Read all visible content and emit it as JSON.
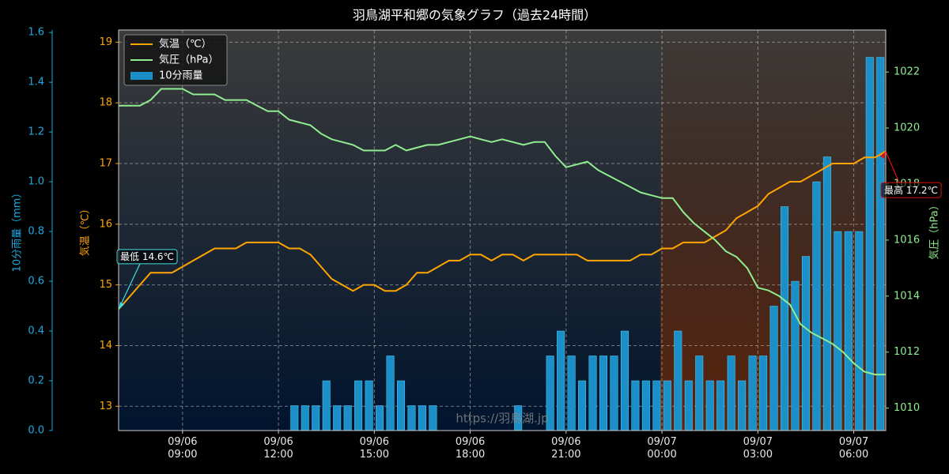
{
  "chart_data": {
    "type": "weather-combo",
    "title": "羽鳥湖平和郷の気象グラフ（過去24時間）",
    "watermark": "https://羽鳥湖.jp",
    "ylabel": "気温（℃）",
    "y2label": "気圧（hPa）",
    "y3label": "10分雨量（mm）",
    "x": [
      "09/06 07:00",
      "09/06 07:20",
      "09/06 07:40",
      "09/06 08:00",
      "09/06 08:20",
      "09/06 08:40",
      "09/06 09:00",
      "09/06 09:20",
      "09/06 09:40",
      "09/06 10:00",
      "09/06 10:20",
      "09/06 10:40",
      "09/06 11:00",
      "09/06 11:20",
      "09/06 11:40",
      "09/06 12:00",
      "09/06 12:20",
      "09/06 12:40",
      "09/06 13:00",
      "09/06 13:20",
      "09/06 13:40",
      "09/06 14:00",
      "09/06 14:20",
      "09/06 14:40",
      "09/06 15:00",
      "09/06 15:20",
      "09/06 15:40",
      "09/06 16:00",
      "09/06 16:20",
      "09/06 16:40",
      "09/06 17:00",
      "09/06 17:20",
      "09/06 17:40",
      "09/06 18:00",
      "09/06 18:20",
      "09/06 18:40",
      "09/06 19:00",
      "09/06 19:20",
      "09/06 19:40",
      "09/06 20:00",
      "09/06 20:20",
      "09/06 20:40",
      "09/06 21:00",
      "09/06 21:20",
      "09/06 21:40",
      "09/06 22:00",
      "09/06 22:20",
      "09/06 22:40",
      "09/06 23:00",
      "09/06 23:20",
      "09/06 23:40",
      "09/07 00:00",
      "09/07 00:20",
      "09/07 00:40",
      "09/07 01:00",
      "09/07 01:20",
      "09/07 01:40",
      "09/07 02:00",
      "09/07 02:20",
      "09/07 02:40",
      "09/07 03:00",
      "09/07 03:20",
      "09/07 03:40",
      "09/07 04:00",
      "09/07 04:20",
      "09/07 04:40",
      "09/07 05:00",
      "09/07 05:20",
      "09/07 05:40",
      "09/07 06:00",
      "09/07 06:20",
      "09/07 06:40",
      "09/07 07:00"
    ],
    "series": [
      {
        "name": "気温（℃）",
        "kind": "line",
        "axis": "y",
        "color": "#ffa500",
        "values": [
          14.6,
          14.8,
          15.0,
          15.2,
          15.2,
          15.2,
          15.3,
          15.4,
          15.5,
          15.6,
          15.6,
          15.6,
          15.7,
          15.7,
          15.7,
          15.7,
          15.6,
          15.6,
          15.5,
          15.3,
          15.1,
          15.0,
          14.9,
          15.0,
          15.0,
          14.9,
          14.9,
          15.0,
          15.2,
          15.2,
          15.3,
          15.4,
          15.4,
          15.5,
          15.5,
          15.4,
          15.5,
          15.5,
          15.4,
          15.5,
          15.5,
          15.5,
          15.5,
          15.5,
          15.4,
          15.4,
          15.4,
          15.4,
          15.4,
          15.5,
          15.5,
          15.6,
          15.6,
          15.7,
          15.7,
          15.7,
          15.8,
          15.9,
          16.1,
          16.2,
          16.3,
          16.5,
          16.6,
          16.7,
          16.7,
          16.8,
          16.9,
          17.0,
          17.0,
          17.0,
          17.1,
          17.1,
          17.2
        ]
      },
      {
        "name": "気圧（hPa）",
        "kind": "line",
        "axis": "y2",
        "color": "#90ee90",
        "values": [
          1020.8,
          1020.8,
          1020.8,
          1021.0,
          1021.4,
          1021.4,
          1021.4,
          1021.2,
          1021.2,
          1021.2,
          1021.0,
          1021.0,
          1021.0,
          1020.8,
          1020.6,
          1020.6,
          1020.3,
          1020.2,
          1020.1,
          1019.8,
          1019.6,
          1019.5,
          1019.4,
          1019.2,
          1019.2,
          1019.2,
          1019.4,
          1019.2,
          1019.3,
          1019.4,
          1019.4,
          1019.5,
          1019.6,
          1019.7,
          1019.6,
          1019.5,
          1019.6,
          1019.5,
          1019.4,
          1019.5,
          1019.5,
          1019.0,
          1018.6,
          1018.7,
          1018.8,
          1018.5,
          1018.3,
          1018.1,
          1017.9,
          1017.7,
          1017.6,
          1017.5,
          1017.5,
          1017.0,
          1016.6,
          1016.3,
          1016.0,
          1015.6,
          1015.4,
          1015.0,
          1014.3,
          1014.2,
          1014.0,
          1013.7,
          1013.0,
          1012.7,
          1012.5,
          1012.3,
          1012.0,
          1011.6,
          1011.3,
          1011.2,
          1011.2
        ]
      },
      {
        "name": "10分雨量",
        "kind": "bar",
        "axis": "y3",
        "color": "#1b8fc7",
        "values": [
          0,
          0,
          0,
          0,
          0,
          0,
          0,
          0,
          0,
          0,
          0,
          0,
          0,
          0,
          0,
          0,
          0,
          0.1,
          0.1,
          0.1,
          0.2,
          0.1,
          0.1,
          0.2,
          0.2,
          0.1,
          0.3,
          0.2,
          0.1,
          0.1,
          0.1,
          0,
          0,
          0,
          0,
          0,
          0,
          0,
          0.1,
          0,
          0,
          0.3,
          0.4,
          0.3,
          0.2,
          0.3,
          0.3,
          0.3,
          0.4,
          0.2,
          0.2,
          0.2,
          0.2,
          0.4,
          0.2,
          0.3,
          0.2,
          0.2,
          0.3,
          0.2,
          0.3,
          0.3,
          0.5,
          0.9,
          0.6,
          0.7,
          1.0,
          1.1,
          0.8,
          0.8,
          0.8,
          1.5,
          1.5
        ]
      }
    ],
    "xlim": [
      "09/06 07:00",
      "09/07 07:00"
    ],
    "xticks": [
      {
        "value": "09/06 09:00",
        "label": "09/06\n09:00"
      },
      {
        "value": "09/06 12:00",
        "label": "09/06\n12:00"
      },
      {
        "value": "09/06 15:00",
        "label": "09/06\n15:00"
      },
      {
        "value": "09/06 18:00",
        "label": "09/06\n18:00"
      },
      {
        "value": "09/06 21:00",
        "label": "09/06\n21:00"
      },
      {
        "value": "09/07 00:00",
        "label": "09/07\n00:00"
      },
      {
        "value": "09/07 03:00",
        "label": "09/07\n03:00"
      },
      {
        "value": "09/07 06:00",
        "label": "09/07\n06:00"
      }
    ],
    "ylim": [
      12.6,
      19.2
    ],
    "yticks": [
      13,
      14,
      15,
      16,
      17,
      18,
      19
    ],
    "y2lim": [
      1009.2,
      1023.5
    ],
    "y2ticks": [
      1010,
      1012,
      1014,
      1016,
      1018,
      1020,
      1022
    ],
    "y3lim": [
      0,
      1.61
    ],
    "y3ticks": [
      {
        "value": 0,
        "label": "0.0"
      },
      0.2,
      0.4,
      0.6,
      0.8,
      {
        "value": 1,
        "label": "1.0"
      },
      1.2,
      1.4,
      1.6
    ],
    "grid": true,
    "legend": "upper left",
    "annotations": [
      {
        "text": "最低 14.6℃",
        "x": "09/06 07:00",
        "y": 14.6,
        "color": "#40e0e0"
      },
      {
        "text": "最高 17.2℃",
        "x": "09/07 07:00",
        "y": 17.2,
        "color": "#e01010"
      }
    ]
  }
}
